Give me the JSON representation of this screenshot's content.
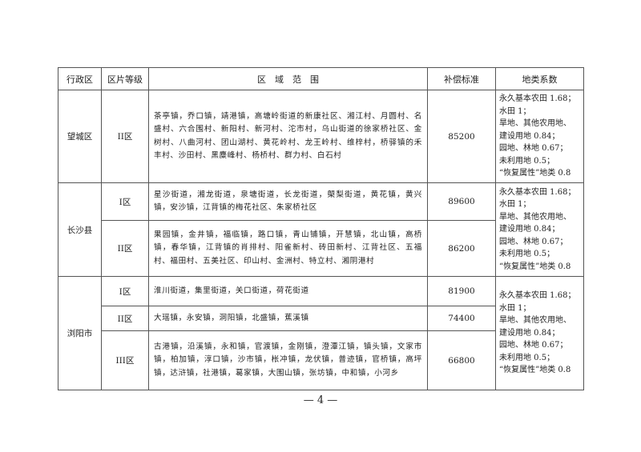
{
  "headers": [
    "行政区",
    "区片等级",
    "区　域　范　围",
    "补偿标准",
    "地类系数"
  ],
  "coefficients": [
    "永久基本农田 1.68；",
    "水田 1；",
    "旱地、其他农用地、",
    "建设用地 0.84；",
    "园地、林地 0.67；",
    "未利用地 0.5；",
    "“恢复属性”地类 0.8"
  ],
  "rows": [
    {
      "district": "望城区",
      "zones": [
        {
          "grade": "II区",
          "area": "茶亭镇，乔口镇，靖港镇，高塘岭街道的新康社区、湘江村、月圆村、名盛村、六合围村、新阳村、新河村、沱市村，乌山街道的徐家桥社区、金树村、八曲河村、团山湖村、黄花岭村、龙王岭村、维梓村，桥驿镇的禾丰村、沙田村、黑麋峰村、杨桥村、群力村、白石村",
          "price": "85200"
        }
      ]
    },
    {
      "district": "长沙县",
      "zones": [
        {
          "grade": "I区",
          "area": "星沙街道，湘龙街道，泉塘街道，长龙街道，㮾梨街道，黄花镇，黄兴镇，安沙镇，江背镇的梅花社区、朱家桥社区",
          "price": "89600"
        },
        {
          "grade": "II区",
          "area": "果园镇，金井镇，福临镇，路口镇，青山铺镇，开慧镇，北山镇，高桥镇，春华镇，江背镇的肖排村、阳雀新村、砖田新村、江背社区、五福村、福田村、五美社区、印山村、金洲村、特立村、湘阴港村",
          "price": "86200"
        }
      ]
    },
    {
      "district": "浏阳市",
      "zones": [
        {
          "grade": "I区",
          "area": "淮川街道，集里街道，关口街道，荷花街道",
          "price": "81900"
        },
        {
          "grade": "II区",
          "area": "大瑶镇，永安镇，洞阳镇，北盛镇，蕉溪镇",
          "price": "74400"
        },
        {
          "grade": "III区",
          "area": "古港镇，沿溪镇，永和镇，官渡镇，金刚镇，澄潭江镇，镇头镇，文家市镇，柏加镇，淳口镇，沙市镇，枨冲镇，龙伏镇，普迹镇，官桥镇，高坪镇，达浒镇，社港镇，葛家镇，大围山镇，张坊镇，中和镇，小河乡",
          "price": "66800"
        }
      ]
    }
  ],
  "page_number": "— 4 —"
}
